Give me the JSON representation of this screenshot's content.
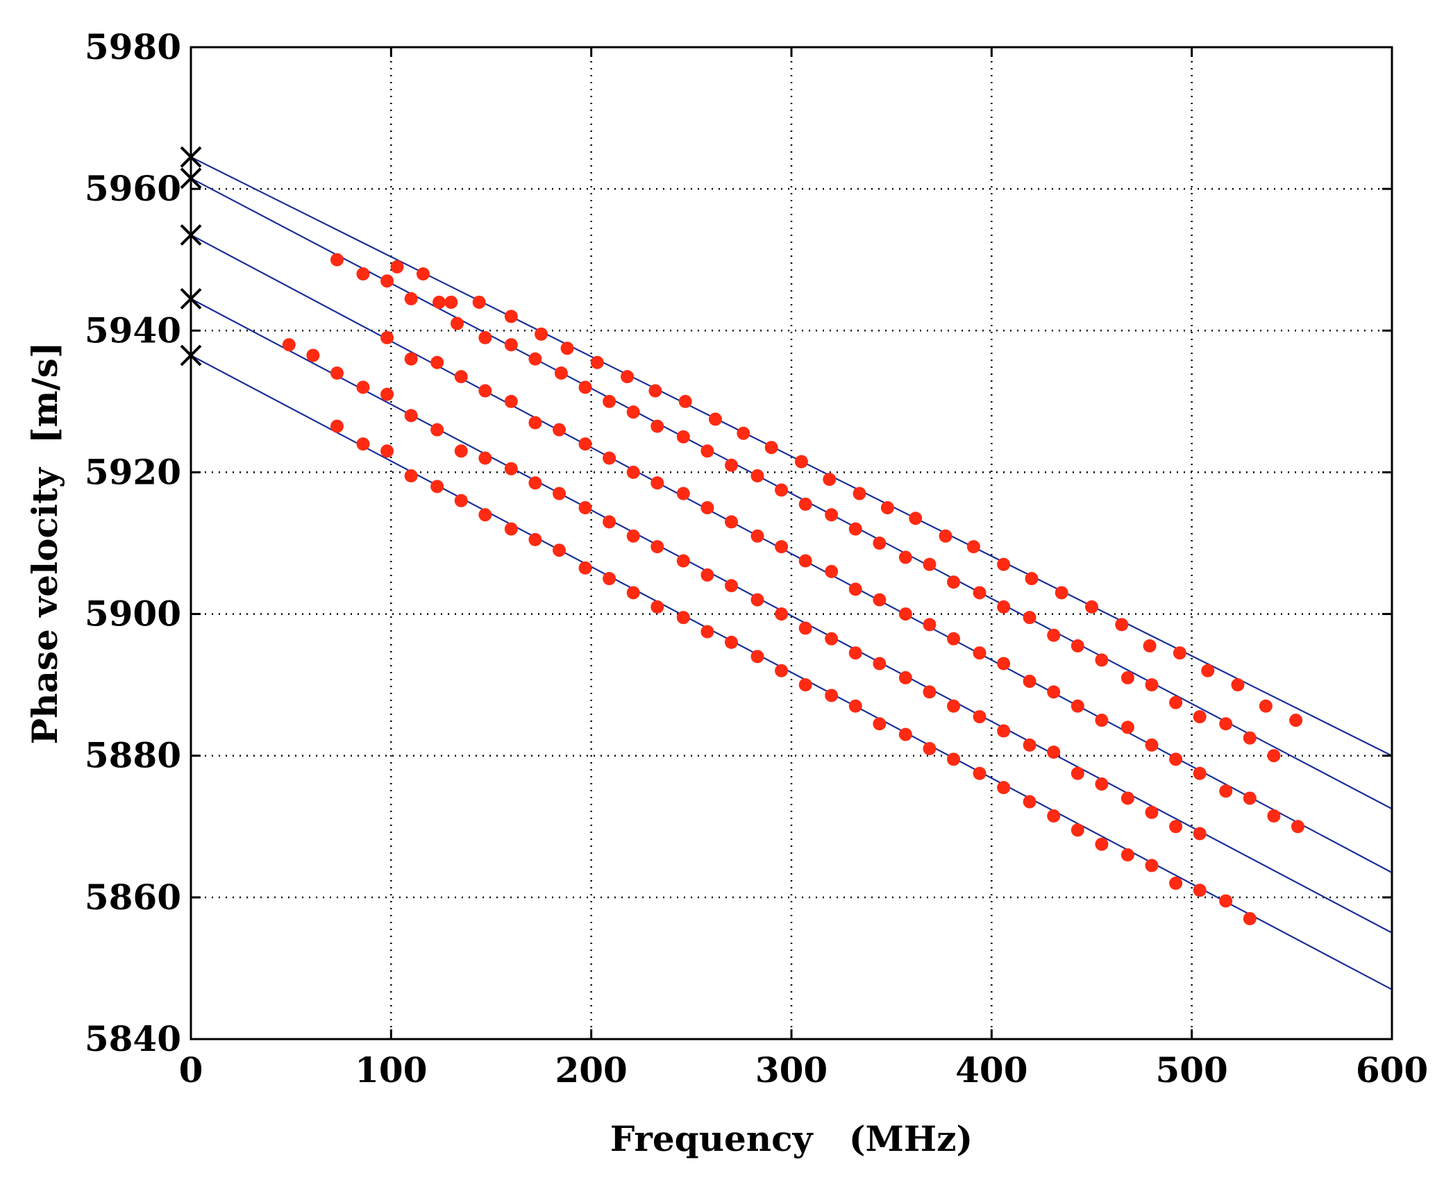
{
  "chart_data": {
    "type": "scatter",
    "title": "",
    "xlabel": "Frequency   (MHz)",
    "ylabel": "Phase velocity  [m/s]",
    "xlim": [
      0,
      600
    ],
    "ylim": [
      5840,
      5980
    ],
    "xticks": [
      0,
      100,
      200,
      300,
      400,
      500,
      600
    ],
    "yticks": [
      5840,
      5860,
      5880,
      5900,
      5920,
      5940,
      5960,
      5980
    ],
    "xtick_labels": [
      "0",
      "100",
      "200",
      "300",
      "400",
      "500",
      "600"
    ],
    "ytick_labels": [
      "5840",
      "5860",
      "5880",
      "5900",
      "5920",
      "5940",
      "5960",
      "5980"
    ],
    "grid": true,
    "colors": {
      "points": "#ff2a12",
      "fit_lines": "#1a2f9a",
      "intercept_marker": "#000000",
      "axes": "#000000"
    },
    "series": [
      {
        "name": "series-1",
        "fit": {
          "intercept": 5964.5,
          "value_at_600": 5880
        },
        "intercept_marker": [
          0,
          5964.5
        ],
        "points": [
          [
            73,
            5950
          ],
          [
            86,
            5948
          ],
          [
            98,
            5947
          ],
          [
            103,
            5949
          ],
          [
            116,
            5948
          ],
          [
            124,
            5944
          ],
          [
            130,
            5944
          ],
          [
            144,
            5944
          ],
          [
            160,
            5942
          ],
          [
            175,
            5939.5
          ],
          [
            188,
            5937.5
          ],
          [
            203,
            5935.5
          ],
          [
            218,
            5933.5
          ],
          [
            232,
            5931.5
          ],
          [
            247,
            5930
          ],
          [
            262,
            5927.5
          ],
          [
            276,
            5925.5
          ],
          [
            290,
            5923.5
          ],
          [
            305,
            5921.5
          ],
          [
            319,
            5919
          ],
          [
            334,
            5917
          ],
          [
            348,
            5915
          ],
          [
            362,
            5913.5
          ],
          [
            377,
            5911
          ],
          [
            391,
            5909.5
          ],
          [
            406,
            5907
          ],
          [
            420,
            5905
          ],
          [
            435,
            5903
          ],
          [
            450,
            5901
          ],
          [
            465,
            5898.5
          ],
          [
            479,
            5895.5
          ],
          [
            494,
            5894.5
          ],
          [
            508,
            5892
          ],
          [
            523,
            5890
          ],
          [
            537,
            5887
          ],
          [
            552,
            5885
          ]
        ]
      },
      {
        "name": "series-2",
        "fit": {
          "intercept": 5961.5,
          "value_at_600": 5872.5
        },
        "intercept_marker": [
          0,
          5961.5
        ],
        "points": [
          [
            110,
            5944.5
          ],
          [
            133,
            5941
          ],
          [
            147,
            5939
          ],
          [
            160,
            5938
          ],
          [
            172,
            5936
          ],
          [
            185,
            5934
          ],
          [
            197,
            5932
          ],
          [
            209,
            5930
          ],
          [
            221,
            5928.5
          ],
          [
            233,
            5926.5
          ],
          [
            246,
            5925
          ],
          [
            258,
            5923
          ],
          [
            270,
            5921
          ],
          [
            283,
            5919.5
          ],
          [
            295,
            5917.5
          ],
          [
            307,
            5915.5
          ],
          [
            320,
            5914
          ],
          [
            332,
            5912
          ],
          [
            344,
            5910
          ],
          [
            357,
            5908
          ],
          [
            369,
            5907
          ],
          [
            381,
            5904.5
          ],
          [
            394,
            5903
          ],
          [
            406,
            5901
          ],
          [
            419,
            5899.5
          ],
          [
            431,
            5897
          ],
          [
            443,
            5895.5
          ],
          [
            455,
            5893.5
          ],
          [
            468,
            5891
          ],
          [
            480,
            5890
          ],
          [
            492,
            5887.5
          ],
          [
            504,
            5885.5
          ],
          [
            517,
            5884.5
          ],
          [
            529,
            5882.5
          ],
          [
            541,
            5880
          ]
        ]
      },
      {
        "name": "series-3",
        "fit": {
          "intercept": 5953.5,
          "value_at_600": 5863.5
        },
        "intercept_marker": [
          0,
          5953.5
        ],
        "points": [
          [
            98,
            5939
          ],
          [
            110,
            5936
          ],
          [
            123,
            5935.5
          ],
          [
            135,
            5933.5
          ],
          [
            147,
            5931.5
          ],
          [
            160,
            5930
          ],
          [
            172,
            5927
          ],
          [
            184,
            5926
          ],
          [
            197,
            5924
          ],
          [
            209,
            5922
          ],
          [
            221,
            5920
          ],
          [
            233,
            5918.5
          ],
          [
            246,
            5917
          ],
          [
            258,
            5915
          ],
          [
            270,
            5913
          ],
          [
            283,
            5911
          ],
          [
            295,
            5909.5
          ],
          [
            307,
            5907.5
          ],
          [
            320,
            5906
          ],
          [
            332,
            5903.5
          ],
          [
            344,
            5902
          ],
          [
            357,
            5900
          ],
          [
            369,
            5898.5
          ],
          [
            381,
            5896.5
          ],
          [
            394,
            5894.5
          ],
          [
            406,
            5893
          ],
          [
            419,
            5890.5
          ],
          [
            431,
            5889
          ],
          [
            443,
            5887
          ],
          [
            455,
            5885
          ],
          [
            468,
            5884
          ],
          [
            480,
            5881.5
          ],
          [
            492,
            5879.5
          ],
          [
            504,
            5877.5
          ],
          [
            517,
            5875
          ],
          [
            529,
            5874
          ],
          [
            541,
            5871.5
          ],
          [
            553,
            5870
          ]
        ]
      },
      {
        "name": "series-4",
        "fit": {
          "intercept": 5944.5,
          "value_at_600": 5855
        },
        "intercept_marker": [
          0,
          5944.5
        ],
        "points": [
          [
            49,
            5938
          ],
          [
            61,
            5936.5
          ],
          [
            73,
            5934
          ],
          [
            86,
            5932
          ],
          [
            98,
            5931
          ],
          [
            110,
            5928
          ],
          [
            123,
            5926
          ],
          [
            135,
            5923
          ],
          [
            147,
            5922
          ],
          [
            160,
            5920.5
          ],
          [
            172,
            5918.5
          ],
          [
            184,
            5917
          ],
          [
            197,
            5915
          ],
          [
            209,
            5913
          ],
          [
            221,
            5911
          ],
          [
            233,
            5909.5
          ],
          [
            246,
            5907.5
          ],
          [
            258,
            5905.5
          ],
          [
            270,
            5904
          ],
          [
            283,
            5902
          ],
          [
            295,
            5900
          ],
          [
            307,
            5898
          ],
          [
            320,
            5896.5
          ],
          [
            332,
            5894.5
          ],
          [
            344,
            5893
          ],
          [
            357,
            5891
          ],
          [
            369,
            5889
          ],
          [
            381,
            5887
          ],
          [
            394,
            5885.5
          ],
          [
            406,
            5883.5
          ],
          [
            419,
            5881.5
          ],
          [
            431,
            5880.5
          ],
          [
            443,
            5877.5
          ],
          [
            455,
            5876
          ],
          [
            468,
            5874
          ],
          [
            480,
            5872
          ],
          [
            492,
            5870
          ],
          [
            504,
            5869
          ]
        ]
      },
      {
        "name": "series-5",
        "fit": {
          "intercept": 5936.5,
          "value_at_600": 5847
        },
        "intercept_marker": [
          0,
          5936.5
        ],
        "points": [
          [
            73,
            5926.5
          ],
          [
            86,
            5924
          ],
          [
            98,
            5923
          ],
          [
            110,
            5919.5
          ],
          [
            123,
            5918
          ],
          [
            135,
            5916
          ],
          [
            147,
            5914
          ],
          [
            160,
            5912
          ],
          [
            172,
            5910.5
          ],
          [
            184,
            5909
          ],
          [
            197,
            5906.5
          ],
          [
            209,
            5905
          ],
          [
            221,
            5903
          ],
          [
            233,
            5901
          ],
          [
            246,
            5899.5
          ],
          [
            258,
            5897.5
          ],
          [
            270,
            5896
          ],
          [
            283,
            5894
          ],
          [
            295,
            5892
          ],
          [
            307,
            5890
          ],
          [
            320,
            5888.5
          ],
          [
            332,
            5887
          ],
          [
            344,
            5884.5
          ],
          [
            357,
            5883
          ],
          [
            369,
            5881
          ],
          [
            381,
            5879.5
          ],
          [
            394,
            5877.5
          ],
          [
            406,
            5875.5
          ],
          [
            419,
            5873.5
          ],
          [
            431,
            5871.5
          ],
          [
            443,
            5869.5
          ],
          [
            455,
            5867.5
          ],
          [
            468,
            5866
          ],
          [
            480,
            5864.5
          ],
          [
            492,
            5862
          ],
          [
            504,
            5861
          ],
          [
            517,
            5859.5
          ],
          [
            529,
            5857
          ]
        ]
      }
    ]
  }
}
